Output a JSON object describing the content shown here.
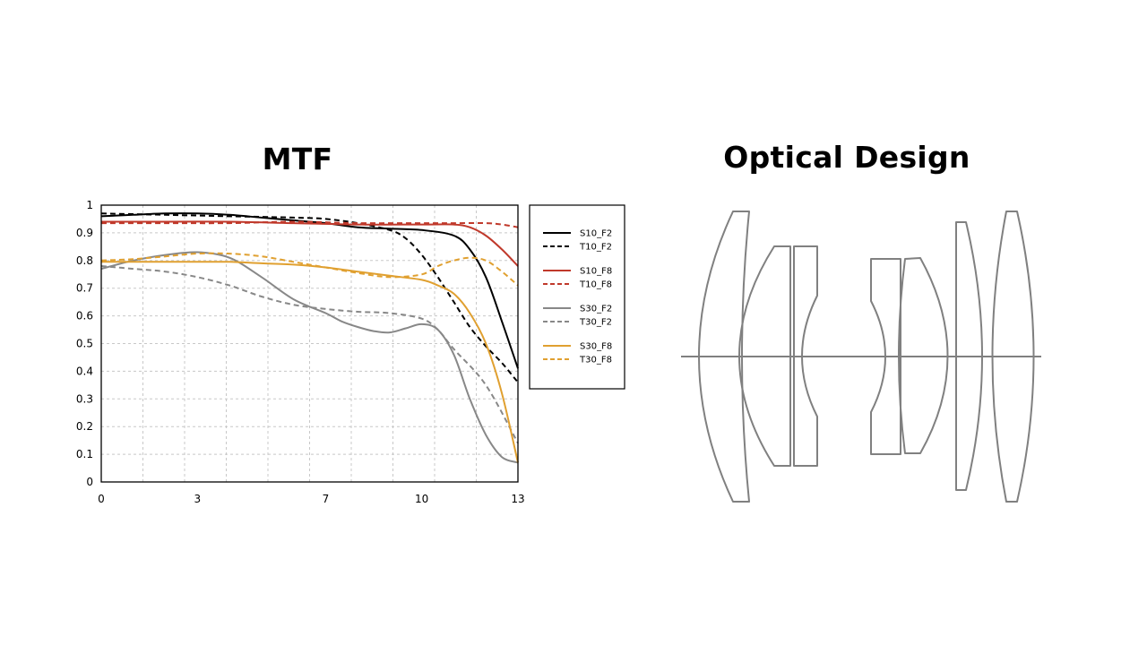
{
  "titles": {
    "mtf": "MTF",
    "optical": "Optical Design"
  },
  "chart_data": {
    "type": "line",
    "title": "MTF",
    "xlabel": "",
    "ylabel": "",
    "xlim": [
      0,
      13
    ],
    "ylim": [
      0,
      1
    ],
    "x_ticks": [
      {
        "value": 0,
        "label": "0"
      },
      {
        "value": 3,
        "label": "3"
      },
      {
        "value": 7,
        "label": "7"
      },
      {
        "value": 10,
        "label": "10"
      },
      {
        "value": 13,
        "label": "13"
      }
    ],
    "y_ticks": [
      {
        "value": 0,
        "label": "0"
      },
      {
        "value": 0.1,
        "label": "0.1"
      },
      {
        "value": 0.2,
        "label": "0.2"
      },
      {
        "value": 0.3,
        "label": "0.3"
      },
      {
        "value": 0.4,
        "label": "0.4"
      },
      {
        "value": 0.5,
        "label": "0.5"
      },
      {
        "value": 0.6,
        "label": "0.6"
      },
      {
        "value": 0.7,
        "label": "0.7"
      },
      {
        "value": 0.8,
        "label": "0.8"
      },
      {
        "value": 0.9,
        "label": "0.9"
      },
      {
        "value": 1,
        "label": "1"
      }
    ],
    "grid": true,
    "legend_position": "right",
    "series": [
      {
        "name": "S10_F2",
        "color": "#000000",
        "dashed": false,
        "points": [
          [
            0,
            0.96
          ],
          [
            1,
            0.965
          ],
          [
            2,
            0.97
          ],
          [
            3,
            0.97
          ],
          [
            4,
            0.965
          ],
          [
            5,
            0.955
          ],
          [
            6,
            0.945
          ],
          [
            7,
            0.935
          ],
          [
            8,
            0.92
          ],
          [
            9,
            0.915
          ],
          [
            10,
            0.91
          ],
          [
            11,
            0.89
          ],
          [
            11.5,
            0.84
          ],
          [
            12,
            0.74
          ],
          [
            12.5,
            0.58
          ],
          [
            13,
            0.41
          ]
        ]
      },
      {
        "name": "T10_F2",
        "color": "#000000",
        "dashed": true,
        "points": [
          [
            0,
            0.97
          ],
          [
            2,
            0.965
          ],
          [
            4,
            0.96
          ],
          [
            6,
            0.955
          ],
          [
            7,
            0.95
          ],
          [
            8,
            0.935
          ],
          [
            9,
            0.91
          ],
          [
            9.5,
            0.88
          ],
          [
            10,
            0.82
          ],
          [
            10.5,
            0.74
          ],
          [
            11,
            0.65
          ],
          [
            11.5,
            0.56
          ],
          [
            12,
            0.49
          ],
          [
            12.5,
            0.43
          ],
          [
            13,
            0.36
          ]
        ]
      },
      {
        "name": "S10_F8",
        "color": "#c0392b",
        "dashed": false,
        "points": [
          [
            0,
            0.94
          ],
          [
            2,
            0.94
          ],
          [
            4,
            0.94
          ],
          [
            6,
            0.935
          ],
          [
            8,
            0.93
          ],
          [
            10,
            0.93
          ],
          [
            11,
            0.93
          ],
          [
            11.5,
            0.92
          ],
          [
            12,
            0.89
          ],
          [
            12.5,
            0.84
          ],
          [
            13,
            0.78
          ]
        ]
      },
      {
        "name": "T10_F8",
        "color": "#c0392b",
        "dashed": true,
        "points": [
          [
            0,
            0.935
          ],
          [
            2,
            0.935
          ],
          [
            4,
            0.935
          ],
          [
            6,
            0.94
          ],
          [
            8,
            0.935
          ],
          [
            10,
            0.935
          ],
          [
            11,
            0.935
          ],
          [
            12,
            0.935
          ],
          [
            12.5,
            0.93
          ],
          [
            13,
            0.92
          ]
        ]
      },
      {
        "name": "S30_F2",
        "color": "#888888",
        "dashed": false,
        "points": [
          [
            0,
            0.77
          ],
          [
            1,
            0.8
          ],
          [
            2,
            0.82
          ],
          [
            3,
            0.83
          ],
          [
            4,
            0.81
          ],
          [
            5,
            0.74
          ],
          [
            6,
            0.66
          ],
          [
            7,
            0.61
          ],
          [
            7.5,
            0.58
          ],
          [
            8,
            0.56
          ],
          [
            8.5,
            0.545
          ],
          [
            9,
            0.54
          ],
          [
            9.5,
            0.555
          ],
          [
            10,
            0.57
          ],
          [
            10.5,
            0.55
          ],
          [
            11,
            0.46
          ],
          [
            11.5,
            0.3
          ],
          [
            12,
            0.17
          ],
          [
            12.5,
            0.09
          ],
          [
            13,
            0.07
          ]
        ]
      },
      {
        "name": "T30_F2",
        "color": "#888888",
        "dashed": true,
        "points": [
          [
            0,
            0.78
          ],
          [
            1,
            0.77
          ],
          [
            2,
            0.76
          ],
          [
            3,
            0.74
          ],
          [
            4,
            0.71
          ],
          [
            5,
            0.67
          ],
          [
            6,
            0.64
          ],
          [
            7,
            0.625
          ],
          [
            8,
            0.615
          ],
          [
            9,
            0.61
          ],
          [
            10,
            0.59
          ],
          [
            10.5,
            0.55
          ],
          [
            11,
            0.48
          ],
          [
            12,
            0.35
          ],
          [
            13,
            0.14
          ]
        ]
      },
      {
        "name": "S30_F8",
        "color": "#e0a030",
        "dashed": false,
        "points": [
          [
            0,
            0.795
          ],
          [
            1,
            0.795
          ],
          [
            2,
            0.795
          ],
          [
            3,
            0.795
          ],
          [
            4,
            0.795
          ],
          [
            5,
            0.79
          ],
          [
            6,
            0.785
          ],
          [
            7,
            0.775
          ],
          [
            8,
            0.76
          ],
          [
            9,
            0.745
          ],
          [
            10,
            0.73
          ],
          [
            10.5,
            0.71
          ],
          [
            11,
            0.68
          ],
          [
            11.5,
            0.61
          ],
          [
            12,
            0.5
          ],
          [
            12.5,
            0.32
          ],
          [
            13,
            0.07
          ]
        ]
      },
      {
        "name": "T30_F8",
        "color": "#e0a030",
        "dashed": true,
        "points": [
          [
            0,
            0.8
          ],
          [
            1,
            0.805
          ],
          [
            2,
            0.815
          ],
          [
            3,
            0.825
          ],
          [
            4,
            0.825
          ],
          [
            5,
            0.815
          ],
          [
            6,
            0.795
          ],
          [
            7,
            0.775
          ],
          [
            8,
            0.755
          ],
          [
            9,
            0.74
          ],
          [
            10,
            0.75
          ],
          [
            10.5,
            0.78
          ],
          [
            11,
            0.8
          ],
          [
            11.5,
            0.81
          ],
          [
            12,
            0.8
          ],
          [
            12.5,
            0.76
          ],
          [
            13,
            0.71
          ]
        ]
      }
    ]
  },
  "diagram": {
    "axis_color": "#808080",
    "lens_color": "#808080"
  }
}
